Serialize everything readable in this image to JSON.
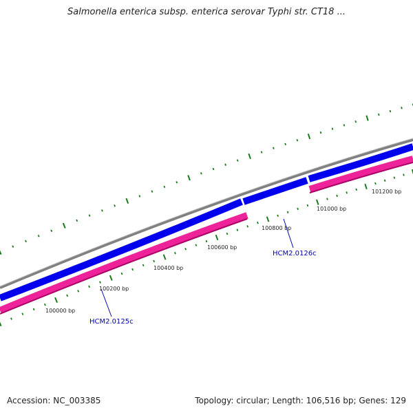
{
  "title": "Salmonella enterica subsp. enterica serovar Typhi str. CT18 ...",
  "footer": {
    "accession": "Accession: NC_003385",
    "summary": "Topology: circular; Length: 106,516 bp; Genes: 129"
  },
  "colors": {
    "background": "#ffffff",
    "backbone": "#808080",
    "forward_gene": "#0000ee",
    "reverse_gene": "#ee2299",
    "tick": "#1a7a1a",
    "gene_label": "#0000aa"
  },
  "scale_labels": [
    "100000 bp",
    "100200 bp",
    "100400 bp",
    "100600 bp",
    "100800 bp",
    "101000 bp",
    "101200 bp"
  ],
  "gene_labels": [
    "HCM2.0125c",
    "HCM2.0126c"
  ]
}
